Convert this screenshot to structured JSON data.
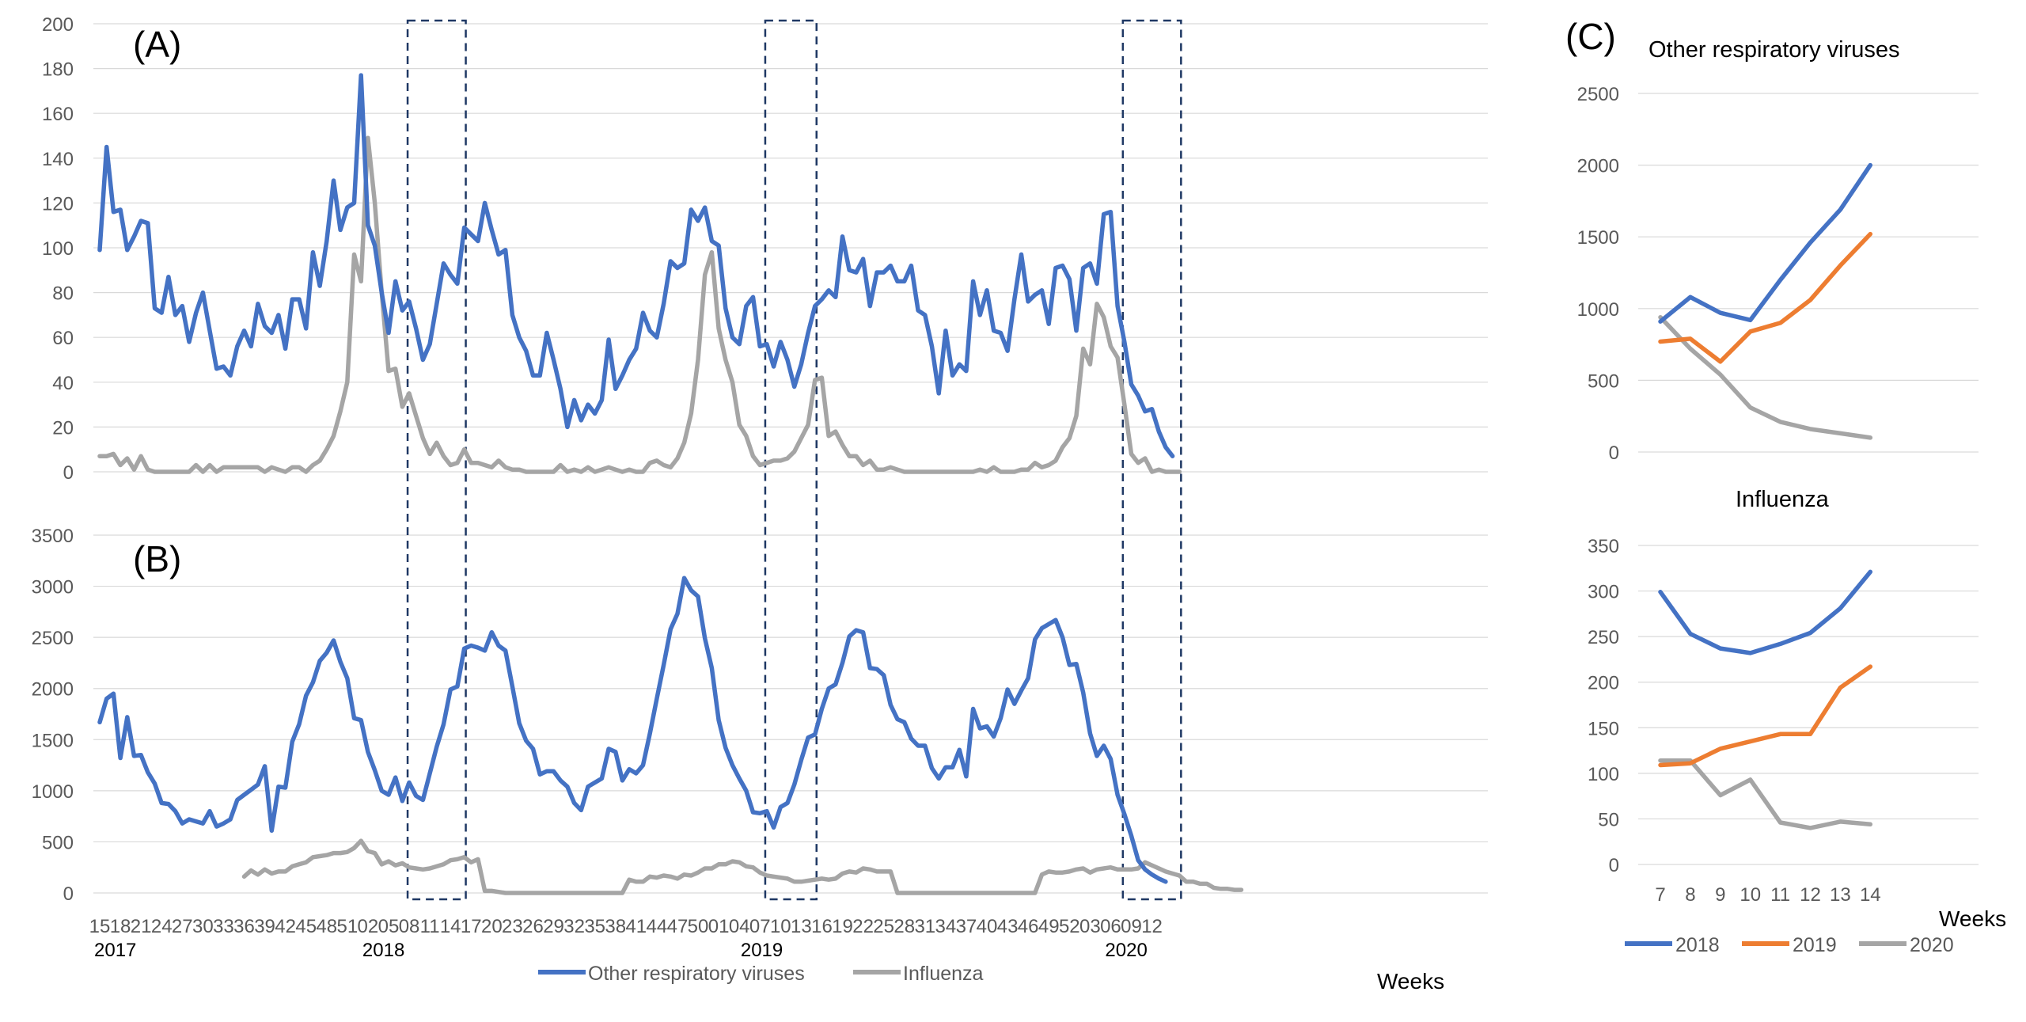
{
  "colors": {
    "blue": "#4472C4",
    "gray": "#A5A5A5",
    "orange": "#ED7D31",
    "grid": "#D9D9D9",
    "box": "#1F3864",
    "text": "#595959"
  },
  "panel_a": {
    "label": "(A)"
  },
  "panel_b": {
    "label": "(B)"
  },
  "panel_c": {
    "label": "(C)",
    "top_title": "Other respiratory viruses",
    "bottom_title": "Influenza"
  },
  "legend_ab": [
    "Other respiratory viruses",
    "Influenza"
  ],
  "legend_c": [
    "2018",
    "2019",
    "2020"
  ],
  "weeks_label_ab": "Weeks",
  "weeks_label_c": "Weeks",
  "chart_data": [
    {
      "type": "line",
      "ylim": [
        0,
        200
      ],
      "yticks": [
        0,
        20,
        40,
        60,
        80,
        100,
        120,
        140,
        160,
        180,
        200
      ],
      "x_week_labels": [
        "15",
        "18",
        "21",
        "24",
        "27",
        "30",
        "33",
        "36",
        "39",
        "42",
        "45",
        "48",
        "51",
        "02",
        "05",
        "08",
        "11",
        "14",
        "17",
        "20",
        "23",
        "26",
        "29",
        "32",
        "35",
        "38",
        "41",
        "44",
        "47",
        "50",
        "01",
        "04",
        "07",
        "10",
        "13",
        "16",
        "19",
        "22",
        "25",
        "28",
        "31",
        "34",
        "37",
        "40",
        "43",
        "46",
        "49",
        "52",
        "03",
        "06",
        "09",
        "12"
      ],
      "year_labels": [
        {
          "label": "2017",
          "week_index": 0
        },
        {
          "label": "2018",
          "week_index": 39
        },
        {
          "label": "2019",
          "week_index": 94
        },
        {
          "label": "2020",
          "week_index": 147
        }
      ],
      "dashed_boxes_week_index": [
        [
          45,
          53
        ],
        [
          97,
          104
        ],
        [
          149,
          157
        ]
      ],
      "series": [
        {
          "name": "Other respiratory viruses",
          "values": [
            99,
            145,
            116,
            117,
            99,
            105,
            112,
            111,
            73,
            71,
            87,
            70,
            74,
            58,
            71,
            80,
            63,
            46,
            47,
            43,
            56,
            63,
            56,
            75,
            65,
            62,
            70,
            55,
            77,
            77,
            64,
            98,
            83,
            103,
            130,
            108,
            118,
            120,
            177,
            110,
            101,
            80,
            62,
            85,
            72,
            76,
            64,
            50,
            57,
            75,
            93,
            88,
            84,
            109,
            106,
            103,
            120,
            108,
            97,
            99,
            70,
            60,
            54,
            43,
            43,
            62,
            50,
            37,
            20,
            32,
            23,
            30,
            26,
            32,
            59,
            37,
            43,
            50,
            55,
            71,
            63,
            60,
            75,
            94,
            91,
            93,
            117,
            112,
            118,
            103,
            101,
            73,
            60,
            57,
            74,
            78,
            56,
            57,
            47,
            58,
            50,
            38,
            48,
            62,
            74,
            77,
            81,
            78,
            105,
            90,
            89,
            95,
            74,
            89,
            89,
            92,
            85,
            85,
            92,
            72,
            70,
            56,
            35,
            63,
            43,
            48,
            45,
            85,
            70,
            81,
            63,
            62,
            54,
            77,
            97,
            76,
            79,
            81,
            66,
            91,
            92,
            86,
            63,
            91,
            93,
            84,
            115,
            116,
            74,
            58,
            39,
            34,
            27,
            28,
            18,
            11,
            7
          ]
        },
        {
          "name": "Influenza",
          "values": [
            7,
            7,
            8,
            3,
            6,
            1,
            7,
            1,
            0,
            0,
            0,
            0,
            0,
            0,
            3,
            0,
            3,
            0,
            2,
            2,
            2,
            2,
            2,
            2,
            0,
            2,
            1,
            0,
            2,
            2,
            0,
            3,
            5,
            10,
            16,
            27,
            40,
            97,
            85,
            149,
            120,
            80,
            45,
            46,
            29,
            35,
            25,
            15,
            8,
            13,
            7,
            3,
            4,
            10,
            4,
            4,
            3,
            2,
            5,
            2,
            1,
            1,
            0,
            0,
            0,
            0,
            0,
            3,
            0,
            1,
            0,
            2,
            0,
            1,
            2,
            1,
            0,
            1,
            0,
            0,
            4,
            5,
            3,
            2,
            6,
            13,
            26,
            50,
            88,
            98,
            64,
            50,
            40,
            21,
            16,
            7,
            3,
            4,
            5,
            5,
            6,
            9,
            15,
            21,
            41,
            42,
            16,
            18,
            12,
            7,
            7,
            3,
            5,
            1,
            1,
            2,
            1,
            0,
            0,
            0,
            0,
            0,
            0,
            0,
            0,
            0,
            0,
            0,
            1,
            0,
            2,
            0,
            0,
            0,
            1,
            1,
            4,
            2,
            3,
            5,
            11,
            15,
            25,
            55,
            48,
            75,
            69,
            56,
            51,
            30,
            8,
            4,
            6,
            0,
            1,
            0,
            0,
            0
          ]
        }
      ]
    },
    {
      "type": "line",
      "ylim": [
        0,
        3500
      ],
      "yticks": [
        0,
        500,
        1000,
        1500,
        2000,
        2500,
        3000,
        3500
      ],
      "series": [
        {
          "name": "Other respiratory viruses",
          "values": [
            1670,
            1900,
            1950,
            1320,
            1720,
            1340,
            1350,
            1180,
            1070,
            880,
            870,
            800,
            680,
            720,
            700,
            680,
            800,
            650,
            680,
            720,
            910,
            960,
            1010,
            1060,
            1240,
            610,
            1040,
            1030,
            1480,
            1650,
            1930,
            2060,
            2270,
            2350,
            2470,
            2260,
            2100,
            1710,
            1690,
            1380,
            1200,
            1000,
            960,
            1130,
            900,
            1080,
            950,
            910,
            1170,
            1430,
            1650,
            1990,
            2020,
            2390,
            2420,
            2400,
            2370,
            2550,
            2420,
            2370,
            2020,
            1660,
            1490,
            1410,
            1160,
            1190,
            1190,
            1100,
            1040,
            880,
            810,
            1040,
            1080,
            1120,
            1410,
            1380,
            1100,
            1210,
            1170,
            1250,
            1560,
            1900,
            2230,
            2580,
            2730,
            3080,
            2960,
            2900,
            2490,
            2200,
            1690,
            1420,
            1250,
            1120,
            1000,
            790,
            780,
            800,
            640,
            840,
            880,
            1060,
            1300,
            1520,
            1550,
            1800,
            2000,
            2040,
            2250,
            2510,
            2570,
            2550,
            2200,
            2190,
            2130,
            1840,
            1700,
            1670,
            1510,
            1440,
            1440,
            1220,
            1120,
            1230,
            1230,
            1400,
            1140,
            1800,
            1610,
            1630,
            1530,
            1710,
            1990,
            1850,
            1980,
            2100,
            2480,
            2590,
            2630,
            2670,
            2500,
            2230,
            2240,
            1960,
            1560,
            1340,
            1440,
            1310,
            960,
            770,
            560,
            320,
            230,
            180,
            140,
            110
          ]
        },
        {
          "name": "Influenza",
          "values": [
            null,
            null,
            null,
            null,
            null,
            null,
            null,
            null,
            null,
            null,
            null,
            null,
            null,
            null,
            null,
            null,
            null,
            null,
            null,
            null,
            null,
            160,
            220,
            180,
            230,
            190,
            210,
            210,
            260,
            280,
            300,
            350,
            360,
            370,
            390,
            390,
            400,
            440,
            510,
            410,
            390,
            280,
            310,
            270,
            290,
            250,
            240,
            230,
            240,
            260,
            280,
            320,
            330,
            350,
            300,
            330,
            20,
            20,
            10,
            0,
            0,
            0,
            0,
            0,
            0,
            0,
            0,
            0,
            0,
            0,
            0,
            0,
            0,
            0,
            0,
            0,
            0,
            130,
            110,
            110,
            160,
            150,
            170,
            160,
            140,
            180,
            170,
            200,
            240,
            240,
            280,
            280,
            310,
            300,
            260,
            250,
            200,
            170,
            160,
            150,
            140,
            110,
            110,
            120,
            130,
            140,
            130,
            140,
            190,
            210,
            200,
            240,
            230,
            210,
            210,
            210,
            0,
            0,
            0,
            0,
            0,
            0,
            0,
            0,
            0,
            0,
            0,
            0,
            0,
            0,
            0,
            0,
            0,
            0,
            0,
            0,
            0,
            180,
            210,
            200,
            200,
            210,
            230,
            240,
            200,
            230,
            240,
            250,
            230,
            230,
            230,
            240,
            300,
            270,
            240,
            210,
            190,
            170,
            110,
            110,
            90,
            90,
            50,
            40,
            40,
            30,
            30
          ]
        }
      ]
    },
    {
      "type": "line",
      "categories": [
        "7",
        "8",
        "9",
        "10",
        "11",
        "12",
        "13",
        "14"
      ],
      "ylim": [
        0,
        2500
      ],
      "yticks": [
        0,
        500,
        1000,
        1500,
        2000,
        2500
      ],
      "series": [
        {
          "name": "2018",
          "values": [
            910,
            1080,
            970,
            920,
            1200,
            1460,
            1690,
            2000
          ]
        },
        {
          "name": "2019",
          "values": [
            770,
            790,
            630,
            840,
            900,
            1060,
            1300,
            1520
          ]
        },
        {
          "name": "2020",
          "values": [
            940,
            720,
            540,
            310,
            210,
            160,
            130,
            100
          ]
        }
      ]
    },
    {
      "type": "line",
      "categories": [
        "7",
        "8",
        "9",
        "10",
        "11",
        "12",
        "13",
        "14"
      ],
      "ylim": [
        0,
        350
      ],
      "yticks": [
        0,
        50,
        100,
        150,
        200,
        250,
        300,
        350
      ],
      "series": [
        {
          "name": "2018",
          "values": [
            299,
            253,
            237,
            232,
            242,
            254,
            281,
            321
          ]
        },
        {
          "name": "2019",
          "values": [
            109,
            111,
            127,
            135,
            143,
            143,
            194,
            217
          ]
        },
        {
          "name": "2020",
          "values": [
            114,
            114,
            76,
            93,
            46,
            40,
            47,
            44
          ]
        }
      ]
    }
  ]
}
